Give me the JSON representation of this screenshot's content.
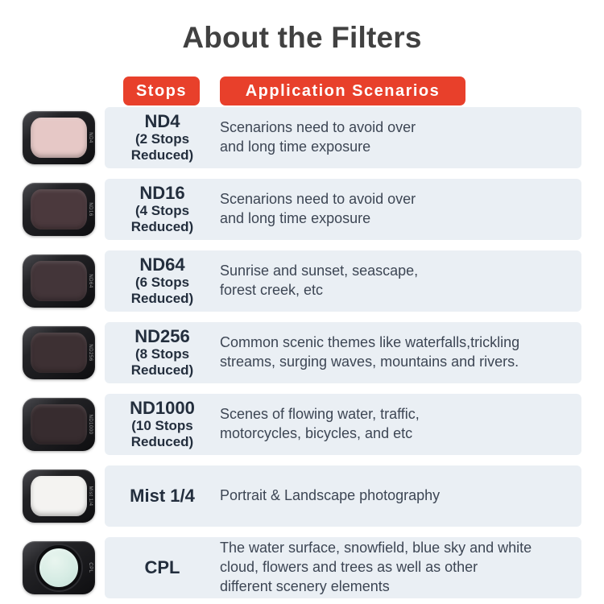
{
  "title": "About the Filters",
  "headers": {
    "stops": "Stops",
    "scenarios": "Application Scenarios"
  },
  "colors": {
    "accent_red": "#e8402b",
    "row_background": "#eaeff4",
    "title_text": "#414141",
    "name_text": "#232e3d",
    "description_text": "#3d4654",
    "filter_frame": "#1a1a1c"
  },
  "rows": [
    {
      "name": "ND4",
      "sub": "(2 Stops\nReduced)",
      "scenario": "Scenarions need to avoid over\nand long time exposure",
      "lens_style": "background:#e6c8c6"
    },
    {
      "name": "ND16",
      "sub": "(4 Stops\nReduced)",
      "scenario": "Scenarions need to avoid over\nand long time exposure",
      "lens_style": "background:#4b393d"
    },
    {
      "name": "ND64",
      "sub": "(6 Stops\nReduced)",
      "scenario": "Sunrise and sunset, seascape,\nforest creek, etc",
      "lens_style": "background:#433539"
    },
    {
      "name": "ND256",
      "sub": "(8 Stops\nReduced)",
      "scenario": "Common scenic themes like waterfalls,trickling\nstreams, surging waves, mountains and rivers.",
      "lens_style": "background:#3d3033"
    },
    {
      "name": "ND1000",
      "sub": "(10 Stops\nReduced)",
      "scenario": "Scenes of flowing water, traffic,\nmotorcycles, bicycles, and etc",
      "lens_style": "background:#372c2f"
    },
    {
      "name": "Mist 1/4",
      "sub": "",
      "scenario": "Portrait & Landscape photography",
      "lens_style": "background:#f4f3f1"
    },
    {
      "name": "CPL",
      "sub": "",
      "scenario": "The water surface, snowfield, blue sky and white\ncloud, flowers and trees as well as other\ndifferent scenery elements",
      "lens_style": "background:radial-gradient(circle at 40% 32%, #e9f5ef 0%, #d6ece4 55%, #c4ded6 100%)"
    }
  ]
}
